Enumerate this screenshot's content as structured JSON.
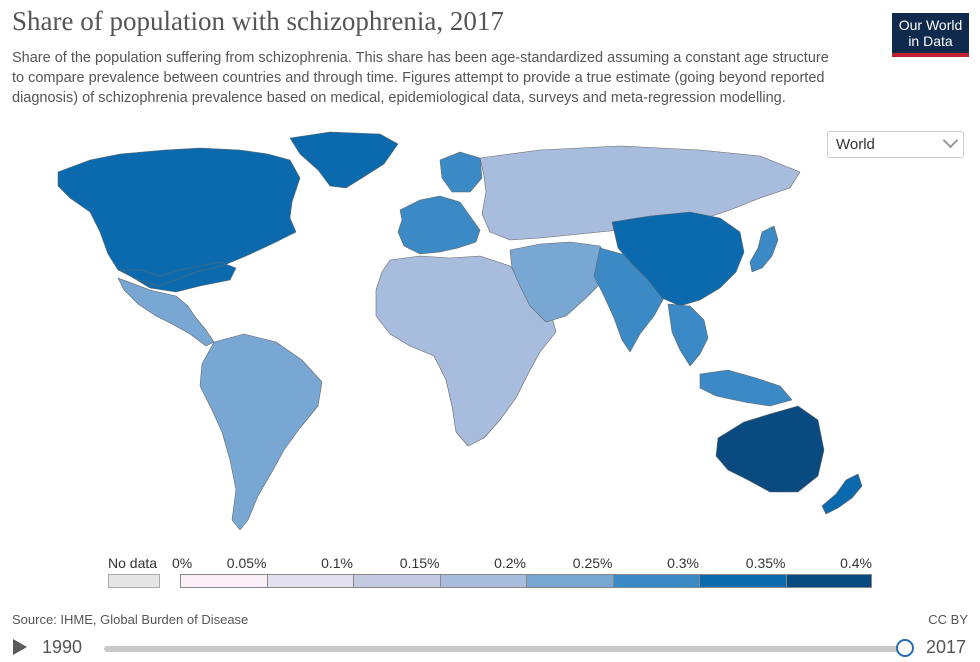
{
  "header": {
    "title": "Share of population with schizophrenia, 2017",
    "subtitle": "Share of the population suffering from schizophrenia. This share has been age-standardized assuming a constant age structure to compare prevalence between countries and through time. Figures attempt to provide a true estimate (going beyond reported diagnosis) of schizophrenia prevalence based on medical, epidemiological data, surveys and meta-regression modelling.",
    "logo_line1": "Our World",
    "logo_line2": "in Data"
  },
  "region_select": {
    "value": "World",
    "icon": "chevron-down-icon"
  },
  "map": {
    "ocean_color": "#ffffff",
    "border_color": "#666666",
    "regions": [
      {
        "name": "North America",
        "bin": 6
      },
      {
        "name": "Greenland",
        "bin": 6
      },
      {
        "name": "Central America",
        "bin": 4
      },
      {
        "name": "South America",
        "bin": 4
      },
      {
        "name": "Western Europe",
        "bin": 5
      },
      {
        "name": "Eastern Europe & Russia",
        "bin": 3
      },
      {
        "name": "Africa",
        "bin": 3
      },
      {
        "name": "Middle East",
        "bin": 4
      },
      {
        "name": "South Asia",
        "bin": 5
      },
      {
        "name": "China",
        "bin": 6
      },
      {
        "name": "Japan",
        "bin": 5
      },
      {
        "name": "Southeast Asia",
        "bin": 5
      },
      {
        "name": "Australia",
        "bin": 7
      },
      {
        "name": "New Zealand",
        "bin": 6
      }
    ]
  },
  "legend": {
    "nodata_label": "No data",
    "nodata_color": "#e6e6e6",
    "ticks": [
      "0%",
      "0.05%",
      "0.1%",
      "0.15%",
      "0.2%",
      "0.25%",
      "0.3%",
      "0.35%",
      "0.4%"
    ],
    "colors": [
      "#fbf0f8",
      "#e3e1f0",
      "#c5cae3",
      "#a8bcde",
      "#78a7d4",
      "#3c8ac5",
      "#0b6aae",
      "#094a80"
    ]
  },
  "footer": {
    "source": "Source: IHME, Global Burden of Disease",
    "license": "CC BY"
  },
  "timeline": {
    "start_year": "1990",
    "end_year": "2017",
    "selected_year": 2017
  }
}
